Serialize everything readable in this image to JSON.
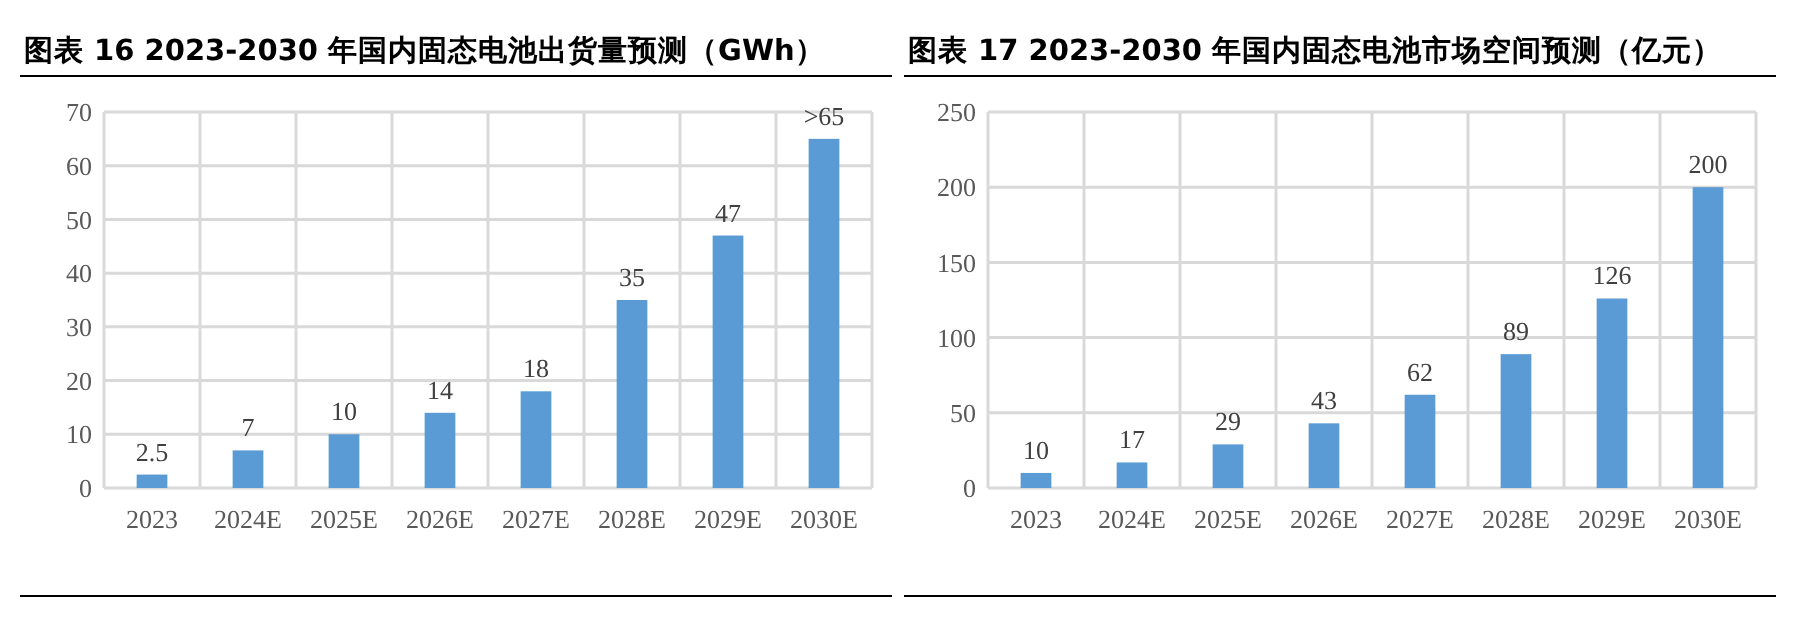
{
  "chart_data": [
    {
      "type": "bar",
      "title": "图表 16 2023-2030 年国内固态电池出货量预测（GWh）",
      "categories": [
        "2023",
        "2024E",
        "2025E",
        "2026E",
        "2027E",
        "2028E",
        "2029E",
        "2030E"
      ],
      "values": [
        2.5,
        7,
        10,
        14,
        18,
        35,
        47,
        65
      ],
      "value_labels": [
        "2.5",
        "7",
        "10",
        "14",
        "18",
        "35",
        "47",
        ">65"
      ],
      "color": "#5b9bd5",
      "ylim": [
        0,
        70
      ],
      "yticks": [
        0,
        10,
        20,
        30,
        40,
        50,
        60,
        70
      ],
      "grid": true
    },
    {
      "type": "bar",
      "title": "图表 17 2023-2030 年国内固态电池市场空间预测（亿元）",
      "categories": [
        "2023",
        "2024E",
        "2025E",
        "2026E",
        "2027E",
        "2028E",
        "2029E",
        "2030E"
      ],
      "values": [
        10,
        17,
        29,
        43,
        62,
        89,
        126,
        200
      ],
      "data_labels": true,
      "color": "#5b9bd5",
      "ylim": [
        0,
        250
      ],
      "yticks": [
        0,
        50,
        100,
        150,
        200,
        250
      ],
      "grid": true
    }
  ]
}
